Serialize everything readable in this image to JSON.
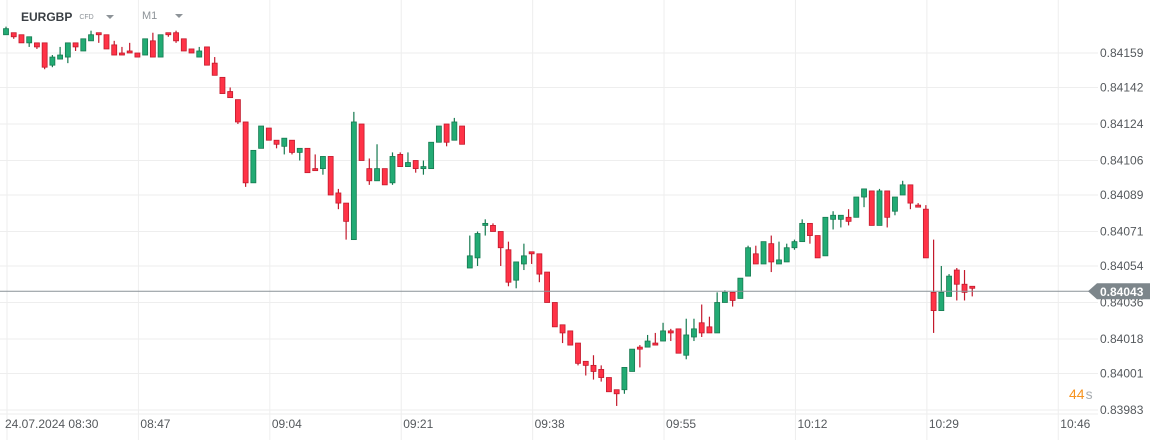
{
  "header": {
    "symbol": "EURGBP",
    "instrument_type": "CFD",
    "timeframe": "M1"
  },
  "countdown": {
    "value": "44",
    "unit": "s"
  },
  "colors": {
    "up": "#22ab74",
    "up_border": "#167a50",
    "down": "#ff3347",
    "down_border": "#c3192c",
    "grid": "#eeeeee",
    "price_line": "#8a9297",
    "price_tag": "#7d868b"
  },
  "chart_data": {
    "type": "candlestick",
    "title": "EURGBP M1",
    "current_price": "0.84043",
    "y_ticks": [
      "0.84159",
      "0.84142",
      "0.84124",
      "0.84106",
      "0.84089",
      "0.84071",
      "0.84054",
      "0.84036",
      "0.84018",
      "0.84001",
      "0.83983"
    ],
    "x_ticks": [
      "24.07.2024  08:30",
      "08:47",
      "09:04",
      "09:21",
      "09:38",
      "09:55",
      "10:12",
      "10:29",
      "10:46"
    ],
    "start_time": "08:30",
    "interval_minutes": 1,
    "ohlc": [
      [
        0.84168,
        0.84172,
        0.84168,
        0.84171
      ],
      [
        0.84169,
        0.84169,
        0.84166,
        0.84167
      ],
      [
        0.84168,
        0.84168,
        0.84164,
        0.84164
      ],
      [
        0.84164,
        0.84167,
        0.84162,
        0.84167
      ],
      [
        0.84164,
        0.84164,
        0.84161,
        0.84162
      ],
      [
        0.84164,
        0.84164,
        0.84151,
        0.84152
      ],
      [
        0.84153,
        0.84158,
        0.84152,
        0.84157
      ],
      [
        0.84156,
        0.84162,
        0.84156,
        0.84158
      ],
      [
        0.84157,
        0.84164,
        0.84154,
        0.84164
      ],
      [
        0.84164,
        0.84164,
        0.8416,
        0.84162
      ],
      [
        0.8416,
        0.84166,
        0.8416,
        0.84166
      ],
      [
        0.84165,
        0.8417,
        0.84165,
        0.84168
      ],
      [
        0.84169,
        0.84169,
        0.84164,
        0.84168
      ],
      [
        0.84168,
        0.84168,
        0.84161,
        0.84161
      ],
      [
        0.84163,
        0.84165,
        0.84158,
        0.84158
      ],
      [
        0.84159,
        0.84162,
        0.84158,
        0.84158
      ],
      [
        0.8416,
        0.84164,
        0.84159,
        0.84159
      ],
      [
        0.84159,
        0.84159,
        0.84157,
        0.84157
      ],
      [
        0.84158,
        0.84166,
        0.84158,
        0.84166
      ],
      [
        0.84165,
        0.84169,
        0.84157,
        0.84157
      ],
      [
        0.84157,
        0.84168,
        0.84157,
        0.84168
      ],
      [
        0.84169,
        0.84169,
        0.84167,
        0.84168
      ],
      [
        0.84169,
        0.8417,
        0.84164,
        0.84165
      ],
      [
        0.84166,
        0.84166,
        0.8416,
        0.8416
      ],
      [
        0.84161,
        0.84161,
        0.84159,
        0.84159
      ],
      [
        0.84157,
        0.84162,
        0.84157,
        0.8416
      ],
      [
        0.84162,
        0.84162,
        0.84153,
        0.84153
      ],
      [
        0.84154,
        0.84157,
        0.84148,
        0.84148
      ],
      [
        0.84147,
        0.84147,
        0.84139,
        0.84139
      ],
      [
        0.8414,
        0.84142,
        0.84137,
        0.84137
      ],
      [
        0.84136,
        0.84136,
        0.84124,
        0.84125
      ],
      [
        0.84125,
        0.84125,
        0.84093,
        0.84095
      ],
      [
        0.84095,
        0.84111,
        0.84095,
        0.84111
      ],
      [
        0.84112,
        0.84123,
        0.84112,
        0.84123
      ],
      [
        0.84122,
        0.84122,
        0.84116,
        0.84116
      ],
      [
        0.84116,
        0.84116,
        0.84112,
        0.84114
      ],
      [
        0.84113,
        0.84117,
        0.84109,
        0.84117
      ],
      [
        0.84116,
        0.84116,
        0.84109,
        0.8411
      ],
      [
        0.8411,
        0.84112,
        0.84106,
        0.84112
      ],
      [
        0.84112,
        0.84112,
        0.841,
        0.841
      ],
      [
        0.84102,
        0.84109,
        0.84101,
        0.84101
      ],
      [
        0.84102,
        0.84108,
        0.84099,
        0.84108
      ],
      [
        0.84108,
        0.84108,
        0.84089,
        0.84089
      ],
      [
        0.8409,
        0.84092,
        0.84082,
        0.84085
      ],
      [
        0.84085,
        0.84085,
        0.84067,
        0.84076
      ],
      [
        0.84067,
        0.8413,
        0.84067,
        0.84125
      ],
      [
        0.84124,
        0.84124,
        0.84106,
        0.84106
      ],
      [
        0.84102,
        0.84107,
        0.84094,
        0.84096
      ],
      [
        0.84096,
        0.84114,
        0.84096,
        0.84102
      ],
      [
        0.84102,
        0.84102,
        0.84094,
        0.84094
      ],
      [
        0.84095,
        0.8411,
        0.84094,
        0.84108
      ],
      [
        0.84109,
        0.8411,
        0.84103,
        0.84103
      ],
      [
        0.84103,
        0.8411,
        0.84103,
        0.84105
      ],
      [
        0.84106,
        0.84106,
        0.841,
        0.84102
      ],
      [
        0.84102,
        0.84106,
        0.84099,
        0.84103
      ],
      [
        0.84102,
        0.84115,
        0.84102,
        0.84115
      ],
      [
        0.84115,
        0.84123,
        0.84115,
        0.84123
      ],
      [
        0.84124,
        0.84124,
        0.84113,
        0.84115
      ],
      [
        0.84116,
        0.84127,
        0.84116,
        0.84125
      ],
      [
        0.84123,
        0.84123,
        0.84114,
        0.84114
      ],
      [
        0.84053,
        0.84069,
        0.84053,
        0.84059
      ],
      [
        0.84058,
        0.84071,
        0.84054,
        0.8407
      ],
      [
        0.84074,
        0.84077,
        0.84069,
        0.84075
      ],
      [
        0.84074,
        0.84075,
        0.84071,
        0.84071
      ],
      [
        0.84071,
        0.84071,
        0.84054,
        0.84063
      ],
      [
        0.84062,
        0.84066,
        0.84044,
        0.84046
      ],
      [
        0.84047,
        0.84056,
        0.84043,
        0.84056
      ],
      [
        0.84055,
        0.84065,
        0.84052,
        0.84059
      ],
      [
        0.84061,
        0.84061,
        0.84055,
        0.8406
      ],
      [
        0.8406,
        0.8406,
        0.84046,
        0.8405
      ],
      [
        0.84051,
        0.84051,
        0.84036,
        0.84036
      ],
      [
        0.84036,
        0.84036,
        0.84024,
        0.84024
      ],
      [
        0.84025,
        0.84025,
        0.84016,
        0.84021
      ],
      [
        0.84022,
        0.84022,
        0.84015,
        0.84015
      ],
      [
        0.84016,
        0.84016,
        0.84005,
        0.84006
      ],
      [
        0.84007,
        0.84007,
        0.84,
        0.84005
      ],
      [
        0.84005,
        0.8401,
        0.83998,
        0.84002
      ],
      [
        0.84003,
        0.84005,
        0.83997,
        0.83999
      ],
      [
        0.83999,
        0.83999,
        0.83992,
        0.83992
      ],
      [
        0.83993,
        0.83993,
        0.83985,
        0.83991
      ],
      [
        0.83993,
        0.84004,
        0.83991,
        0.84004
      ],
      [
        0.84002,
        0.84013,
        0.84002,
        0.84013
      ],
      [
        0.84014,
        0.84015,
        0.84004,
        0.84013
      ],
      [
        0.84014,
        0.8402,
        0.84014,
        0.84017
      ],
      [
        0.84016,
        0.84021,
        0.84015,
        0.84015
      ],
      [
        0.84017,
        0.84026,
        0.84017,
        0.84022
      ],
      [
        0.84022,
        0.84023,
        0.84017,
        0.84021
      ],
      [
        0.84023,
        0.84023,
        0.84011,
        0.84011
      ],
      [
        0.8401,
        0.84028,
        0.84008,
        0.8402
      ],
      [
        0.84019,
        0.84028,
        0.84017,
        0.84023
      ],
      [
        0.84026,
        0.84035,
        0.84019,
        0.84021
      ],
      [
        0.84024,
        0.84029,
        0.84021,
        0.84021
      ],
      [
        0.84021,
        0.84041,
        0.84021,
        0.84036
      ],
      [
        0.84036,
        0.84042,
        0.84036,
        0.84041
      ],
      [
        0.84041,
        0.84041,
        0.84034,
        0.84037
      ],
      [
        0.84038,
        0.84048,
        0.84038,
        0.84048
      ],
      [
        0.84049,
        0.84064,
        0.84049,
        0.84063
      ],
      [
        0.8406,
        0.84064,
        0.84055,
        0.84055
      ],
      [
        0.84055,
        0.84066,
        0.84055,
        0.84066
      ],
      [
        0.84065,
        0.84069,
        0.84051,
        0.84056
      ],
      [
        0.84055,
        0.84066,
        0.84055,
        0.84057
      ],
      [
        0.84056,
        0.84065,
        0.84056,
        0.84063
      ],
      [
        0.84063,
        0.84067,
        0.84062,
        0.84066
      ],
      [
        0.84066,
        0.84077,
        0.84066,
        0.84075
      ],
      [
        0.84075,
        0.84075,
        0.84065,
        0.84069
      ],
      [
        0.84069,
        0.84069,
        0.84058,
        0.84058
      ],
      [
        0.84059,
        0.84078,
        0.84059,
        0.84078
      ],
      [
        0.84077,
        0.84081,
        0.84072,
        0.84079
      ],
      [
        0.84077,
        0.84079,
        0.84073,
        0.84079
      ],
      [
        0.84078,
        0.84082,
        0.84074,
        0.84076
      ],
      [
        0.84078,
        0.84088,
        0.84078,
        0.84088
      ],
      [
        0.84088,
        0.84092,
        0.84083,
        0.84092
      ],
      [
        0.84091,
        0.84091,
        0.84074,
        0.84074
      ],
      [
        0.84074,
        0.84092,
        0.84074,
        0.84091
      ],
      [
        0.84091,
        0.84091,
        0.84073,
        0.84078
      ],
      [
        0.84081,
        0.84088,
        0.84079,
        0.84088
      ],
      [
        0.84089,
        0.84096,
        0.84089,
        0.84094
      ],
      [
        0.84094,
        0.84094,
        0.84082,
        0.84085
      ],
      [
        0.84084,
        0.84085,
        0.84083,
        0.84083
      ],
      [
        0.84082,
        0.84084,
        0.84058,
        0.84058
      ],
      [
        0.84041,
        0.84067,
        0.84021,
        0.84032
      ],
      [
        0.84032,
        0.84054,
        0.84032,
        0.84041
      ],
      [
        0.84039,
        0.8405,
        0.84039,
        0.84049
      ],
      [
        0.84052,
        0.84053,
        0.84037,
        0.84045
      ],
      [
        0.84045,
        0.84052,
        0.84037,
        0.84041
      ],
      [
        0.84044,
        0.84044,
        0.84039,
        0.84043
      ]
    ]
  }
}
